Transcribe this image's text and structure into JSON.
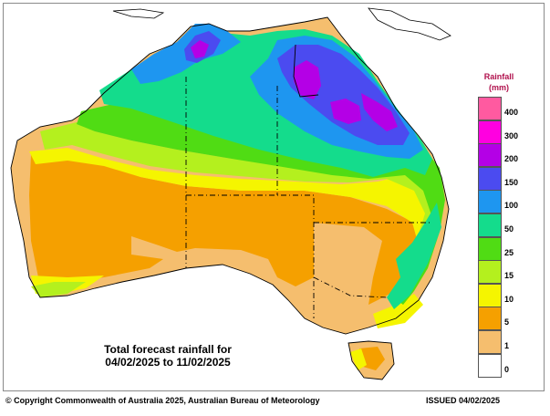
{
  "legend": {
    "title_line1": "Rainfall",
    "title_line2": "(mm)",
    "items": [
      {
        "label": "400",
        "color": "#ff5aa0"
      },
      {
        "label": "300",
        "color": "#ff00e0"
      },
      {
        "label": "200",
        "color": "#b400e6"
      },
      {
        "label": "150",
        "color": "#4b4bf0"
      },
      {
        "label": "100",
        "color": "#1e96f0"
      },
      {
        "label": "50",
        "color": "#14dc8c"
      },
      {
        "label": "25",
        "color": "#50dc14"
      },
      {
        "label": "15",
        "color": "#b4f01e"
      },
      {
        "label": "10",
        "color": "#f5f500"
      },
      {
        "label": "5",
        "color": "#f5a000"
      },
      {
        "label": "1",
        "color": "#f5be6e"
      },
      {
        "label": "0",
        "color": "#ffffff"
      }
    ]
  },
  "caption": {
    "line1": "Total forecast rainfall for",
    "line2": "04/02/2025 to 11/02/2025"
  },
  "footer": {
    "copyright": "© Copyright Commonwealth of Australia 2025, Australian Bureau of Meteorology",
    "issued": "ISSUED 04/02/2025"
  }
}
